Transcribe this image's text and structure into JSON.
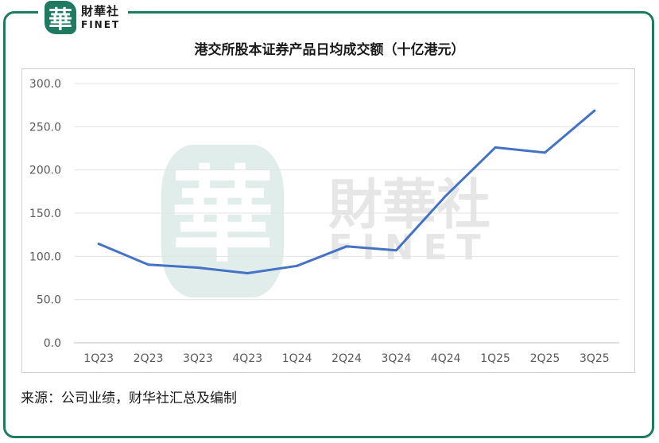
{
  "brand": {
    "logo_char": "華",
    "name_cn": "財華社",
    "name_en": "FINET",
    "color": "#1f7a62"
  },
  "watermark": {
    "char": "華",
    "name_cn": "財華社",
    "name_en": "FINET"
  },
  "source": "来源：公司业绩，财华社汇总及编制",
  "chart_data": {
    "type": "line",
    "title": "港交所股本证券产品日均成交额（十亿港元）",
    "categories": [
      "1Q23",
      "2Q23",
      "3Q23",
      "4Q23",
      "1Q24",
      "2Q24",
      "3Q24",
      "4Q24",
      "1Q25",
      "2Q25",
      "3Q25"
    ],
    "series": [
      {
        "values": [
          114.5,
          90.5,
          87,
          80.5,
          89,
          111.5,
          107,
          170,
          226,
          220,
          268.5
        ],
        "color": "#4472c4"
      }
    ],
    "yticks": [
      "0.0",
      "50.0",
      "100.0",
      "150.0",
      "200.0",
      "250.0",
      "300.0"
    ],
    "ylim": [
      0,
      300
    ],
    "grid": true,
    "legend": "none"
  }
}
